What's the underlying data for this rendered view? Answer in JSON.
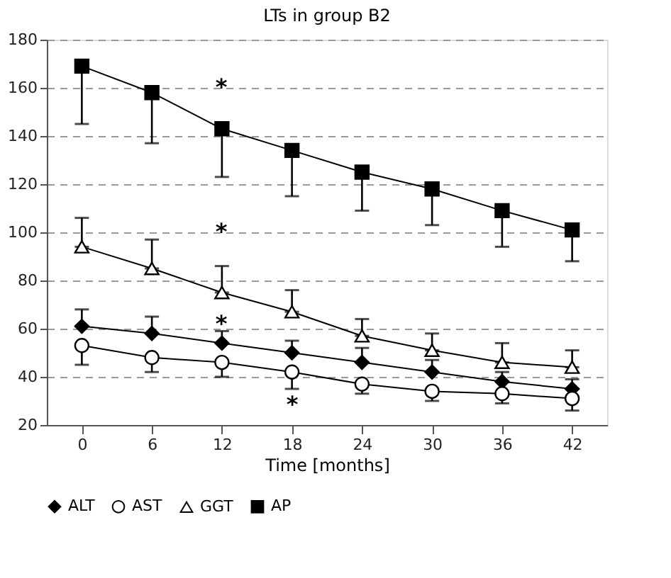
{
  "chart_data": {
    "type": "line",
    "title": "LTs in group B2",
    "xlabel": "Time [months]",
    "x": [
      0,
      6,
      12,
      18,
      24,
      30,
      36,
      42
    ],
    "xlim": [
      -3,
      45
    ],
    "xticks": [
      0,
      6,
      12,
      18,
      24,
      30,
      36,
      42
    ],
    "ylim": [
      20,
      180
    ],
    "yticks": [
      20,
      40,
      60,
      80,
      100,
      120,
      140,
      160,
      180
    ],
    "grid": "y",
    "legend": "bottom",
    "series": [
      {
        "name": "ALT",
        "color": "#000000",
        "marker": "diamond",
        "values": [
          61,
          58,
          54,
          50,
          46,
          42,
          38,
          35
        ],
        "errors": [
          [
            61,
            68
          ],
          [
            58,
            65
          ],
          [
            54,
            59
          ],
          [
            50,
            55
          ],
          [
            46,
            52
          ],
          [
            42,
            47
          ],
          [
            38,
            42
          ],
          [
            35,
            39
          ]
        ]
      },
      {
        "name": "AST",
        "color": "#000000",
        "marker": "circle",
        "values": [
          53,
          48,
          46,
          42,
          37,
          34,
          33,
          31
        ],
        "errors": [
          [
            45,
            53
          ],
          [
            42,
            48
          ],
          [
            40,
            46
          ],
          [
            35,
            42
          ],
          [
            33,
            37
          ],
          [
            30,
            34
          ],
          [
            29,
            33
          ],
          [
            26,
            31
          ]
        ]
      },
      {
        "name": "GGT",
        "color": "#000000",
        "marker": "triangle",
        "values": [
          94,
          85,
          75,
          67,
          57,
          51,
          46,
          44
        ],
        "errors": [
          [
            94,
            106
          ],
          [
            85,
            97
          ],
          [
            75,
            86
          ],
          [
            67,
            76
          ],
          [
            57,
            64
          ],
          [
            51,
            58
          ],
          [
            46,
            54
          ],
          [
            44,
            51
          ]
        ]
      },
      {
        "name": "AP",
        "color": "#000000",
        "marker": "square",
        "values": [
          169,
          158,
          143,
          134,
          125,
          118,
          109,
          101
        ],
        "errors": [
          [
            145,
            169
          ],
          [
            137,
            158
          ],
          [
            123,
            143
          ],
          [
            115,
            134
          ],
          [
            109,
            125
          ],
          [
            103,
            118
          ],
          [
            94,
            109
          ],
          [
            88,
            101
          ]
        ]
      }
    ],
    "annotations": [
      "*",
      "*",
      "*",
      "*"
    ]
  }
}
